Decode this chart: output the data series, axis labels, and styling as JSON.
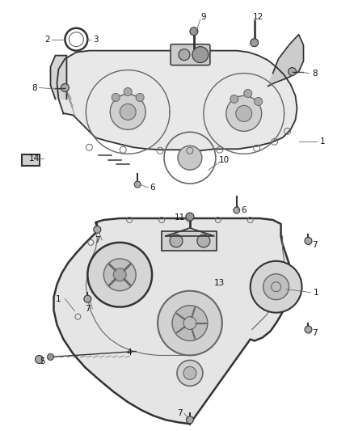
{
  "bg_color": "#ffffff",
  "lc": "#666666",
  "dc": "#333333",
  "fill_light": "#e0e0e0",
  "fill_medium": "#c8c8c8",
  "label_color": "#111111",
  "figsize": [
    4.38,
    5.33
  ],
  "dpi": 100
}
